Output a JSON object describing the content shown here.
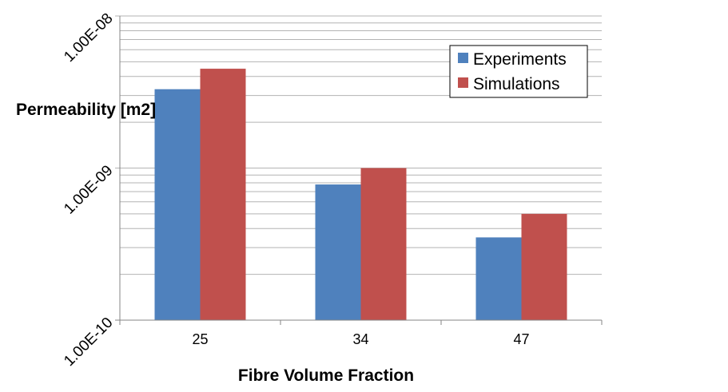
{
  "chart_data": {
    "type": "bar",
    "title": "",
    "xlabel": "Fibre Volume Fraction",
    "ylabel": "Permeability [m2]",
    "yscale": "log",
    "ylim": [
      1e-10,
      1e-08
    ],
    "y_ticks": [
      "1.00E-10",
      "1.00E-09",
      "1.00E-08"
    ],
    "categories": [
      "25",
      "34",
      "47"
    ],
    "series": [
      {
        "name": "Experiments",
        "color": "#4f81bd",
        "values": [
          3.3e-09,
          7.8e-10,
          3.5e-10
        ]
      },
      {
        "name": "Simulations",
        "color": "#c0504d",
        "values": [
          4.5e-09,
          1e-09,
          5e-10
        ]
      }
    ],
    "grid": true,
    "legend": "top-right"
  }
}
